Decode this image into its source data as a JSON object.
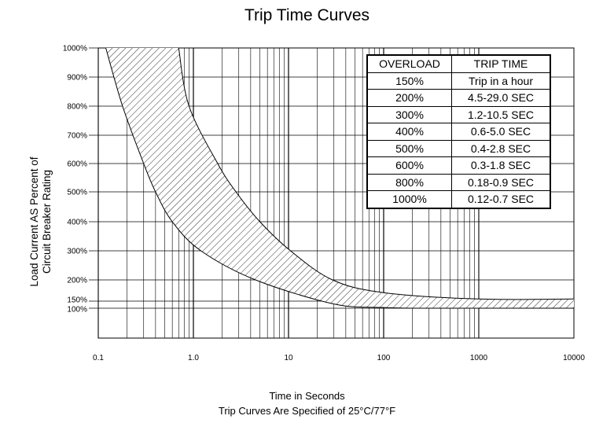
{
  "chart_data": {
    "type": "area",
    "title": "Trip Time Curves",
    "xlabel": "Time in Seconds",
    "x_note": "Trip Curves Are Specified of 25°C/77°F",
    "ylabel_lines": [
      "Load Current AS Percent of",
      "Circuit Breaker Rating"
    ],
    "x_scale": "log",
    "xlim": [
      0.1,
      10000
    ],
    "ylim": [
      0,
      1000
    ],
    "x_ticks": [
      0.1,
      1.0,
      10,
      100,
      1000,
      10000
    ],
    "x_tick_labels": [
      "0.1",
      "1.0",
      "10",
      "100",
      "1000",
      "10000"
    ],
    "y_ticks": [
      100,
      150,
      200,
      300,
      400,
      500,
      600,
      700,
      800,
      900,
      1000
    ],
    "y_tick_labels": [
      "100%",
      "150%",
      "200%",
      "300%",
      "400%",
      "500%",
      "600%",
      "700%",
      "800%",
      "900%",
      "1000%"
    ],
    "grid": true,
    "series": [
      {
        "role": "lower-bound",
        "x": [
          0.12,
          0.18,
          0.3,
          0.4,
          0.6,
          1.2,
          4.5,
          30,
          100,
          300,
          10000
        ],
        "y": [
          1000,
          800,
          600,
          500,
          400,
          300,
          200,
          130,
          105,
          100,
          100
        ]
      },
      {
        "role": "upper-bound",
        "x": [
          0.7,
          0.9,
          1.8,
          2.8,
          5.0,
          10.5,
          29.0,
          100,
          1000,
          10000
        ],
        "y": [
          1000,
          800,
          600,
          500,
          400,
          300,
          200,
          170,
          155,
          155
        ]
      }
    ],
    "table": {
      "headers": [
        "OVERLOAD",
        "TRIP TIME"
      ],
      "rows": [
        [
          "150%",
          "Trip in a hour"
        ],
        [
          "200%",
          "4.5-29.0 SEC"
        ],
        [
          "300%",
          "1.2-10.5 SEC"
        ],
        [
          "400%",
          "0.6-5.0 SEC"
        ],
        [
          "500%",
          "0.4-2.8 SEC"
        ],
        [
          "600%",
          "0.3-1.8 SEC"
        ],
        [
          "800%",
          "0.18-0.9 SEC"
        ],
        [
          "1000%",
          "0.12-0.7 SEC"
        ]
      ]
    }
  }
}
